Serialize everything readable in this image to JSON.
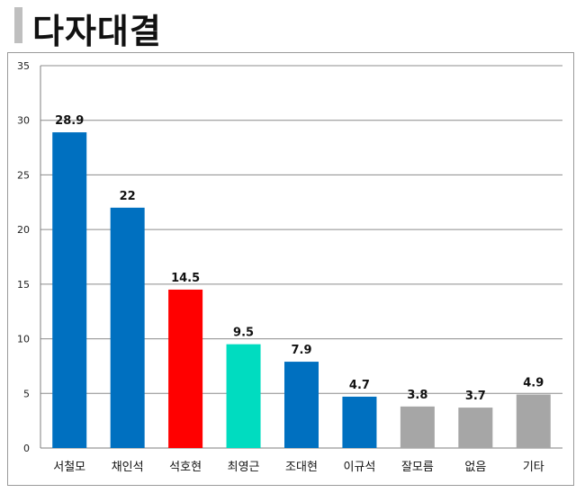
{
  "page": {
    "title": "다자대결"
  },
  "chart_data": {
    "type": "bar",
    "title": "다자대결",
    "xlabel": "",
    "ylabel": "",
    "ylim": [
      0,
      35
    ],
    "yticks": [
      0,
      5,
      10,
      15,
      20,
      25,
      30,
      35
    ],
    "grid": true,
    "legend": "none",
    "categories": [
      "서철모",
      "채인석",
      "석호현",
      "최영근",
      "조대현",
      "이규석",
      "잘모름",
      "없음",
      "기타"
    ],
    "values": [
      28.9,
      22,
      14.5,
      9.5,
      7.9,
      4.7,
      3.8,
      3.7,
      4.9
    ],
    "value_labels": [
      "28.9",
      "22",
      "14.5",
      "9.5",
      "7.9",
      "4.7",
      "3.8",
      "3.7",
      "4.9"
    ],
    "colors": [
      "#0070c0",
      "#0070c0",
      "#ff0000",
      "#00dcc0",
      "#0070c0",
      "#0070c0",
      "#a6a6a6",
      "#a6a6a6",
      "#a6a6a6"
    ]
  }
}
